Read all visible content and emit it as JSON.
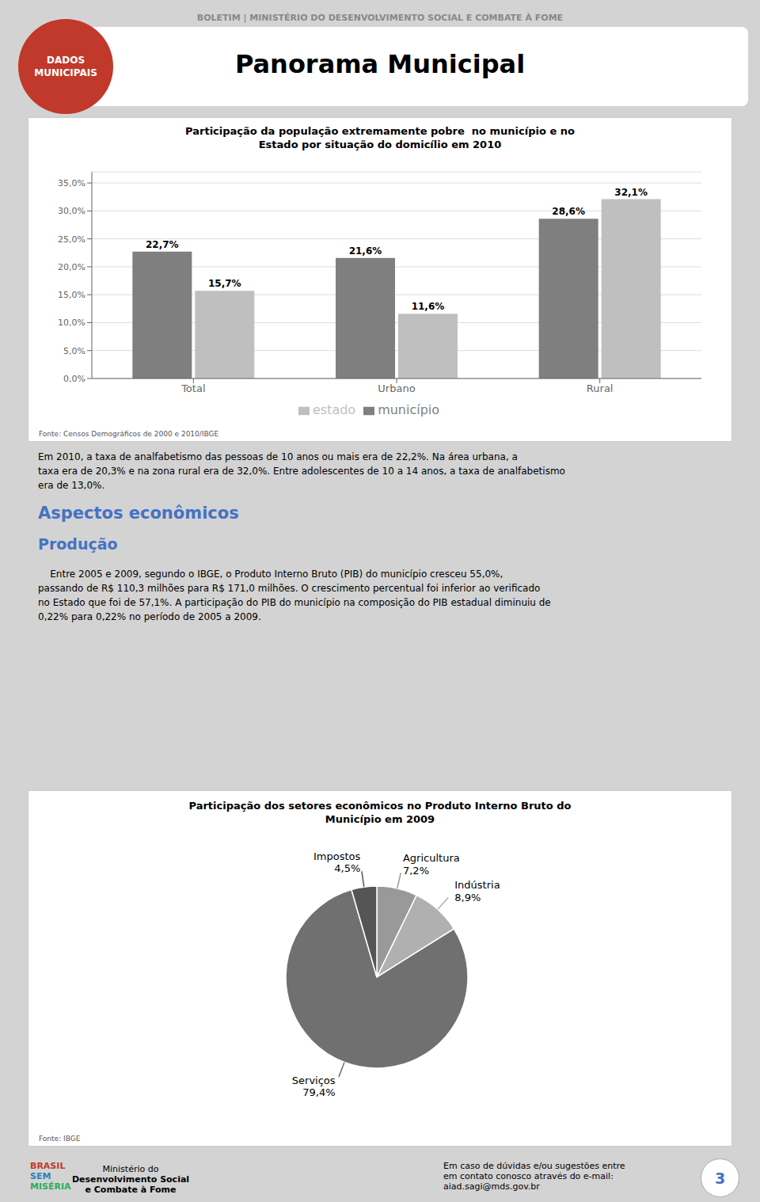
{
  "title": "Panorama Municipal",
  "subtitle": "BOLETIM | MINISTÉRIO DO DESENVOLVIMENTO SOCIAL E COMBATE À FOME",
  "annotations": [
    "DADOS\nMUNICIPAIS",
    "Em 2010, a taxa de analfabetismo das pessoas de 10 anos ou mais era de 22,2%. Na área urbana, a\ntaxa era de 20,3% e na zona rural era de 32,0%. Entre adolescentes de 10 a 14 anos, a taxa de analfabetismo\nera de 13,0%.",
    "Aspectos econômicos",
    "Produção",
    "    Entre 2005 e 2009, segundo o IBGE, o Produto Interno Bruto (PIB) do município cresceu 55,0%,\npassando de R$ 110,3 milhões para R$ 171,0 milhões. O crescimento percentual foi inferior ao verificado\nno Estado que foi de 57,1%. A participação do PIB do município na composição do PIB estadual diminuiu de\n0,22% para 0,22% no período de 2005 a 2009.",
    "Ministério do\nDesenvolvimento Social\ne Combate à Fome",
    "Em caso de dúvidas e/ou sugestões entre\nem contato conosco através do e-mail:\naiad.sagi@mds.gov.br",
    "BRASIL\nSEM\nMISÉRIA",
    "3"
  ],
  "chart_data": [
    {
      "type": "bar",
      "title": "Participação da população extremamente pobre  no município e no\nEstado por situação do domicílio em 2010",
      "categories": [
        "Total",
        "Urbano",
        "Rural"
      ],
      "series": [
        {
          "name": "município",
          "color": "#7f7f7f",
          "values": [
            22.7,
            21.6,
            28.6
          ],
          "value_labels": [
            "22,7%",
            "21,6%",
            "28,6%"
          ]
        },
        {
          "name": "estado",
          "color": "#bfbfbf",
          "values": [
            15.7,
            11.6,
            32.1
          ],
          "value_labels": [
            "15,7%",
            "11,6%",
            "32,1%"
          ]
        }
      ],
      "ylim": [
        0,
        37
      ],
      "yticks": [
        {
          "value": 0,
          "label": "0,0%"
        },
        {
          "value": 5,
          "label": "5,0%"
        },
        {
          "value": 10,
          "label": "10,0%"
        },
        {
          "value": 15,
          "label": "15,0%"
        },
        {
          "value": 20,
          "label": "20,0%"
        },
        {
          "value": 25,
          "label": "25,0%"
        },
        {
          "value": 30,
          "label": "30,0%"
        },
        {
          "value": 35,
          "label": "35,0%"
        }
      ],
      "grid": true,
      "legend": "bottom",
      "data_labels": true,
      "annotations": [
        "Fonte: Censos Demográficos de 2000 e 2010/IBGE"
      ]
    },
    {
      "type": "pie",
      "title": "Participação dos setores econômicos no Produto Interno Bruto do\nMunicípio em 2009",
      "categories": [
        "Agricultura",
        "Indústria",
        "Serviços",
        "Impostos"
      ],
      "values": [
        7.2,
        8.9,
        79.4,
        4.5
      ],
      "value_labels": [
        "7,2%",
        "8,9%",
        "79,4%",
        "4,5%"
      ],
      "colors": [
        "#999999",
        "#b0b0b0",
        "#707070",
        "#555555"
      ],
      "data_labels": true,
      "annotations": [
        "Fonte: IBGE"
      ]
    }
  ]
}
